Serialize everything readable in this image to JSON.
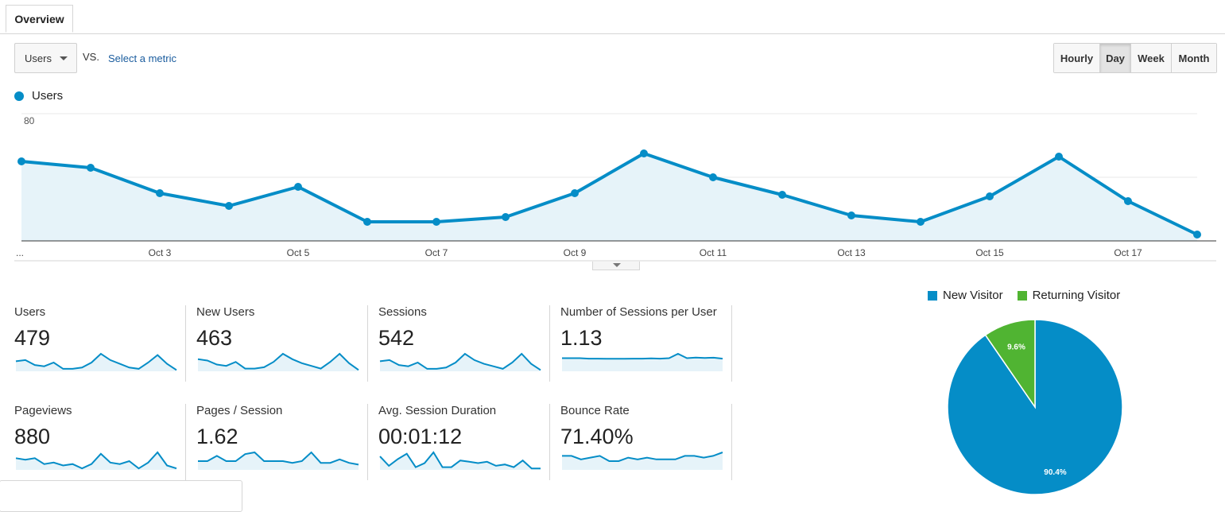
{
  "tabs": [
    {
      "label": "Overview"
    }
  ],
  "controls": {
    "metric_select": "Users",
    "vs_text": "VS.",
    "select_metric_link": "Select a metric",
    "periods": [
      "Hourly",
      "Day",
      "Week",
      "Month"
    ],
    "active_period": "Day"
  },
  "colors": {
    "primary": "#058dc7",
    "secondary": "#50b432",
    "area": "#e6f3f9"
  },
  "chart_data": [
    {
      "type": "area",
      "series": [
        {
          "name": "Users",
          "values": [
            50,
            46,
            30,
            22,
            34,
            12,
            12,
            15,
            30,
            55,
            40,
            29,
            16,
            12,
            28,
            53,
            25,
            4
          ]
        }
      ],
      "x_tick_labels": [
        "...",
        "Oct 3",
        "Oct 5",
        "Oct 7",
        "Oct 9",
        "Oct 11",
        "Oct 13",
        "Oct 15",
        "Oct 17"
      ],
      "y_ticks": [
        80,
        40
      ],
      "ylim": [
        0,
        80
      ],
      "grid": true,
      "legend_position": "top-left"
    },
    {
      "type": "pie",
      "slices": [
        {
          "label": "New Visitor",
          "value": 90.4,
          "display": "90.4%",
          "color": "#058dc7"
        },
        {
          "label": "Returning Visitor",
          "value": 9.6,
          "display": "9.6%",
          "color": "#50b432"
        }
      ],
      "legend_position": "top"
    }
  ],
  "scorecards": [
    {
      "label": "Users",
      "value": "479",
      "spark": [
        8,
        9,
        5,
        4,
        7,
        2,
        2,
        3,
        7,
        14,
        9,
        6,
        3,
        2,
        7,
        13,
        6,
        1
      ]
    },
    {
      "label": "New Users",
      "value": "463",
      "spark": [
        9,
        8,
        5,
        4,
        7,
        2,
        2,
        3,
        7,
        13,
        9,
        6,
        4,
        2,
        7,
        13,
        6,
        1
      ]
    },
    {
      "label": "Sessions",
      "value": "542",
      "spark": [
        8,
        9,
        5,
        4,
        7,
        2,
        2,
        3,
        7,
        14,
        9,
        6,
        4,
        2,
        7,
        14,
        6,
        1
      ]
    },
    {
      "label": "Number of Sessions per User",
      "value": "1.13",
      "spark": [
        6,
        6,
        6,
        5.8,
        5.8,
        5.7,
        5.7,
        5.7,
        5.8,
        5.8,
        5.9,
        5.8,
        6,
        8,
        6,
        6.3,
        6.1,
        6.2,
        5.8
      ]
    },
    {
      "label": "Pageviews",
      "value": "880",
      "spark": [
        8,
        7,
        8,
        4,
        5,
        3,
        4,
        1,
        4,
        11,
        5,
        4,
        6,
        1,
        5,
        12,
        3,
        1
      ]
    },
    {
      "label": "Pages / Session",
      "value": "1.62",
      "spark": [
        5,
        5,
        8,
        5,
        5,
        9,
        10,
        5,
        5,
        5,
        4,
        5,
        10,
        4,
        4,
        6,
        4,
        3
      ]
    },
    {
      "label": "Avg. Session Duration",
      "value": "00:01:12",
      "spark": [
        10,
        3,
        8,
        12,
        2,
        5,
        13,
        2,
        2,
        7,
        6,
        5,
        6,
        3,
        4,
        2,
        7,
        1,
        1
      ]
    },
    {
      "label": "Bounce Rate",
      "value": "71.40%",
      "spark": [
        8,
        8,
        6,
        7,
        8,
        5,
        5,
        7,
        6,
        7,
        6,
        6,
        6,
        8,
        8,
        7,
        8,
        10
      ]
    }
  ]
}
